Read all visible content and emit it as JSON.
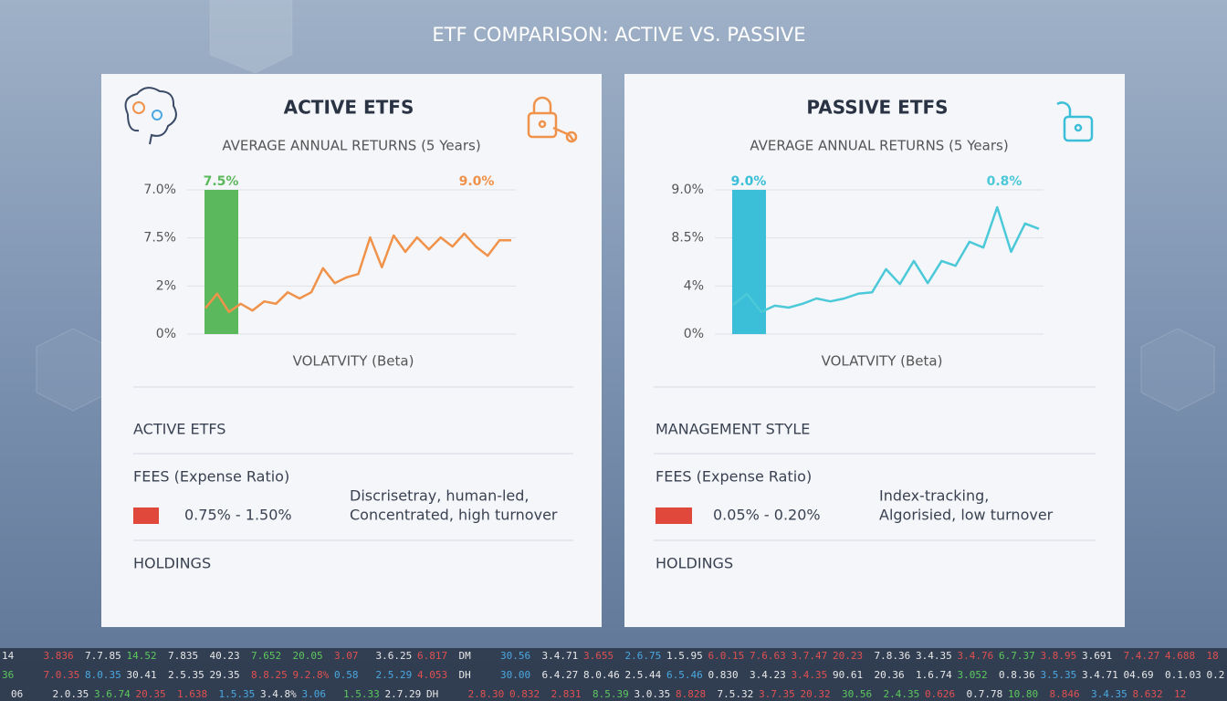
{
  "title": "ETF COMPARISON: ACTIVE VS. PASSIVE",
  "chart_data": [
    {
      "type": "line",
      "title": "AVERAGE ANNUAL RETURNS (5 Years)",
      "x_label": "VOLATVITY (Beta)",
      "ylim": [
        0,
        3
      ],
      "yticks": [
        {
          "value": 0,
          "label": "0%"
        },
        {
          "value": 1,
          "label": "2%"
        },
        {
          "value": 2,
          "label": "7.5%"
        },
        {
          "value": 3,
          "label": "7.0%"
        }
      ],
      "grid": true,
      "bar_values": [
        3
      ],
      "bar_color": "#5cb85c",
      "series": [
        {
          "color": "#f0924a",
          "values": [
            0.54,
            0.84,
            0.46,
            0.63,
            0.49,
            0.68,
            0.63,
            0.87,
            0.74,
            0.87,
            1.37,
            1.06,
            1.18,
            1.25,
            2.01,
            1.39,
            2.05,
            1.71,
            2.01,
            1.76,
            2.01,
            1.82,
            2.09,
            1.82,
            1.63,
            1.95,
            1.95
          ]
        }
      ],
      "annotations": [
        "7.5%",
        "9.0%"
      ]
    },
    {
      "type": "line",
      "title": "AVERAGE ANNUAL RETURNS (5 Years)",
      "x_label": "VOLATVITY (Beta)",
      "ylim": [
        0,
        3
      ],
      "yticks": [
        {
          "value": 0,
          "label": "0%"
        },
        {
          "value": 1,
          "label": "4%"
        },
        {
          "value": 2,
          "label": "8.5%"
        },
        {
          "value": 3,
          "label": "9.0%"
        }
      ],
      "grid": true,
      "bar_values": [
        3
      ],
      "bar_color": "#3bbfd8",
      "series": [
        {
          "color": "#4cc9d9",
          "values": [
            0.61,
            0.84,
            0.46,
            0.59,
            0.55,
            0.63,
            0.74,
            0.68,
            0.74,
            0.84,
            0.87,
            1.35,
            1.04,
            1.52,
            1.06,
            1.52,
            1.42,
            1.92,
            1.8,
            2.64,
            1.71,
            2.3,
            2.19
          ]
        }
      ],
      "annotations": [
        "9.0%",
        "0.8%"
      ]
    }
  ],
  "panels": [
    {
      "heading": "ACTIVE ETFS",
      "section1": "ACTIVE ETFS",
      "section2": "FEES (Expense Ratio)",
      "fee": "0.75% - 1.50%",
      "style": [
        "Discrisetray, human-led,",
        "Concentrated, high turnover"
      ],
      "section3": "HOLDINGS"
    },
    {
      "heading": "PASSIVE ETFS",
      "section1": "MANAGEMENT STYLE",
      "section2": "FEES (Expense Ratio)",
      "fee": "0.05% - 0.20%",
      "style": [
        "Index-tracking,",
        "Algorisied, low turnover"
      ],
      "section3": "HOLDINGS"
    }
  ],
  "ticker": [
    {
      "items": [
        "14",
        "3.836",
        "7.7.85",
        "14.52",
        "7.835",
        "40.23",
        "7.652",
        "20.05",
        "3.07",
        "3.6.25",
        "6.817",
        "DM",
        "30.56",
        "3.4.71",
        "3.655",
        "2.6.75",
        "1.5.95",
        "6.0.15",
        "7.6.63",
        "3.7.47",
        "20.23",
        "7.8.36",
        "3.4.35",
        "3.4.76",
        "6.7.37",
        "3.8.95",
        "3.691",
        "7.4.27",
        "4.688",
        "18"
      ],
      "colors": [
        "#e8e8e8",
        "#e05050",
        "#e8e8e8",
        "#5cc85c",
        "#e8e8e8",
        "#e8e8e8",
        "#5cc85c",
        "#5cc85c",
        "#e05050",
        "#e8e8e8",
        "#e05050",
        "#e8e8e8",
        "#4aa8e0",
        "#e8e8e8",
        "#e05050",
        "#4aa8e0",
        "#e8e8e8",
        "#e05050",
        "#e05050",
        "#e05050",
        "#e05050",
        "#e8e8e8",
        "#e8e8e8",
        "#e05050",
        "#5cc85c",
        "#e05050",
        "#e8e8e8",
        "#e05050",
        "#e05050",
        "#e05050"
      ]
    },
    {
      "items": [
        "36",
        "7.0.35",
        "8.0.35",
        "30.41",
        "2.5.35",
        "29.35",
        "8.8.25",
        "9.2.8%",
        "0.58",
        "2.5.29",
        "4.053",
        "DH",
        "30.00",
        "6.4.27",
        "8.0.46",
        "2.5.44",
        "6.5.46",
        "0.830",
        "3.4.23",
        "3.4.35",
        "90.61",
        "20.36",
        "1.6.74",
        "3.052",
        "0.8.36",
        "3.5.35",
        "3.4.71",
        "04.69",
        "0.1.03",
        "0.2"
      ],
      "colors": [
        "#5cc85c",
        "#e05050",
        "#4aa8e0",
        "#e8e8e8",
        "#e8e8e8",
        "#e8e8e8",
        "#e05050",
        "#e05050",
        "#4aa8e0",
        "#4aa8e0",
        "#e05050",
        "#e8e8e8",
        "#4aa8e0",
        "#e8e8e8",
        "#e8e8e8",
        "#e8e8e8",
        "#4aa8e0",
        "#e8e8e8",
        "#e8e8e8",
        "#e05050",
        "#e8e8e8",
        "#e8e8e8",
        "#e8e8e8",
        "#5cc85c",
        "#e8e8e8",
        "#4aa8e0",
        "#e8e8e8",
        "#e8e8e8",
        "#e8e8e8",
        "#e8e8e8"
      ]
    },
    {
      "items": [
        "06",
        "2.0.35",
        "3.6.74",
        "20.35",
        "1.638",
        "1.5.35",
        "3.4.8%",
        "3.06",
        "1.5.33",
        "2.7.29",
        "DH",
        "2.8.30",
        "0.832",
        "2.831",
        "8.5.39",
        "3.0.35",
        "8.828",
        "7.5.32",
        "3.7.35",
        "20.32",
        "30.56",
        "2.4.35",
        "0.626",
        "0.7.78",
        "10.80",
        "8.846",
        "3.4.35",
        "8.632",
        "12"
      ],
      "colors": [
        "#e8e8e8",
        "#e8e8e8",
        "#5cc85c",
        "#e05050",
        "#e05050",
        "#4aa8e0",
        "#e8e8e8",
        "#4aa8e0",
        "#5cc85c",
        "#e8e8e8",
        "#e8e8e8",
        "#e05050",
        "#e05050",
        "#e05050",
        "#5cc85c",
        "#e8e8e8",
        "#e05050",
        "#e8e8e8",
        "#e05050",
        "#e05050",
        "#5cc85c",
        "#5cc85c",
        "#e05050",
        "#e8e8e8",
        "#5cc85c",
        "#e05050",
        "#4aa8e0",
        "#e05050",
        "#e05050"
      ]
    }
  ]
}
